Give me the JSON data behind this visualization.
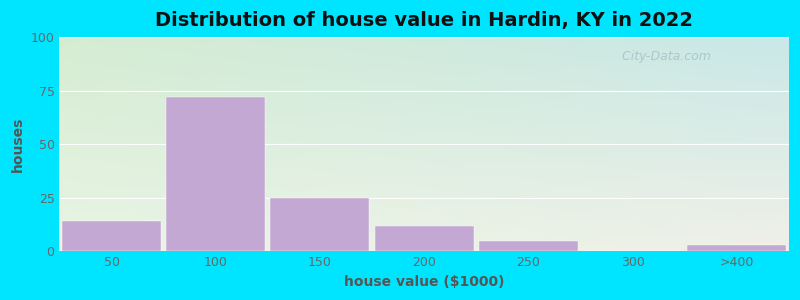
{
  "title": "Distribution of house value in Hardin, KY in 2022",
  "xlabel": "house value ($1000)",
  "ylabel": "houses",
  "bar_values": [
    14,
    72,
    25,
    12,
    5,
    0,
    3
  ],
  "bar_labels": [
    "50",
    "100",
    "150",
    "200",
    "250",
    "300",
    ">400"
  ],
  "bar_color": "#c4a8d4",
  "ylim": [
    0,
    100
  ],
  "yticks": [
    0,
    25,
    50,
    75,
    100
  ],
  "bg_color_top_left": "#d6ecd2",
  "bg_color_bottom_right": "#f0f0e8",
  "bg_color_top_right": "#c8e8e8",
  "outer_bg": "#00e5ff",
  "title_fontsize": 14,
  "axis_label_fontsize": 10,
  "tick_fontsize": 9,
  "watermark_text": "City-Data.com",
  "watermark_color": "#aac0c8",
  "figsize": [
    8.0,
    3.0
  ],
  "dpi": 100
}
